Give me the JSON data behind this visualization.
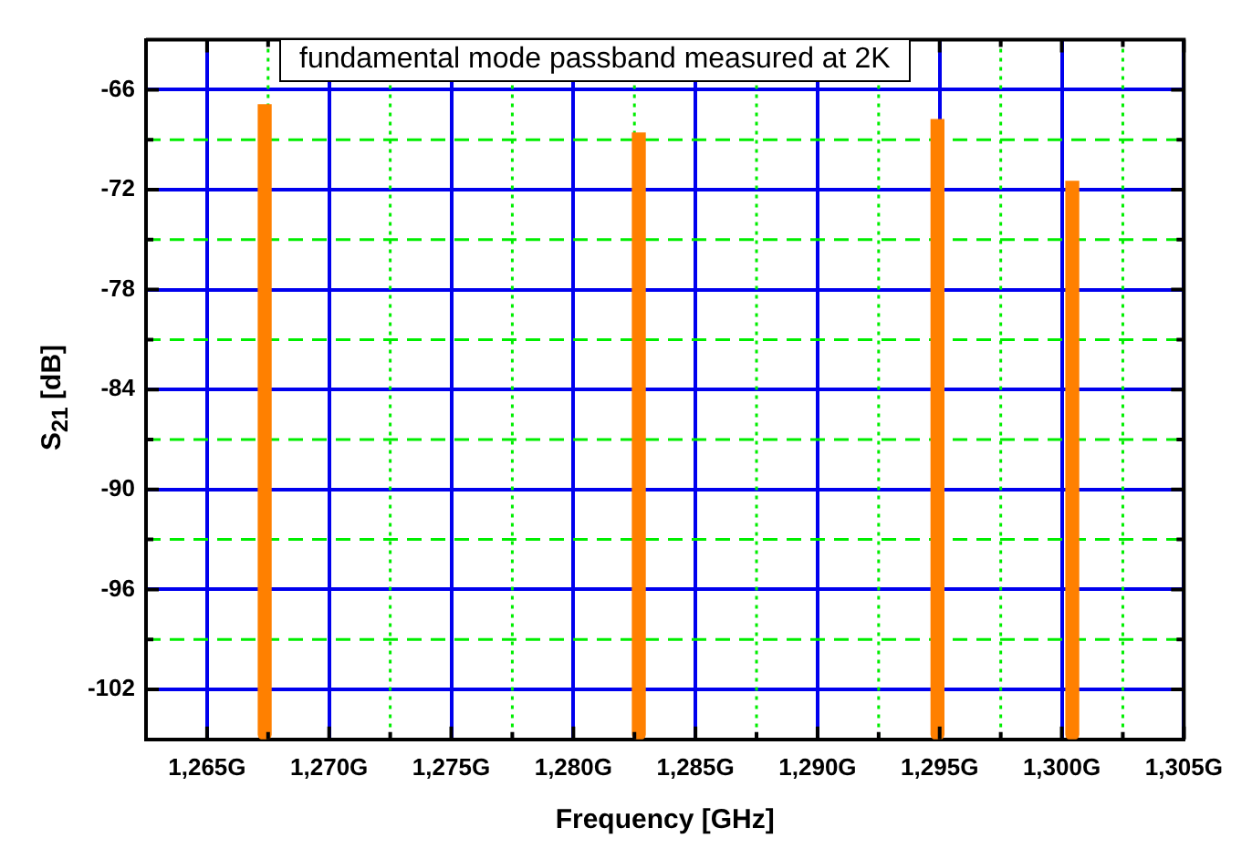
{
  "chart_data": {
    "type": "bar",
    "title": "fundamental mode passband measured at 2K",
    "xlabel": "Frequency [GHz]",
    "ylabel": "S$_{21}$ [dB]",
    "x": [
      1267.36,
      1282.68,
      1294.91,
      1300.43
    ],
    "base": [
      -105,
      -105,
      -105,
      -105
    ],
    "values": [
      38.1,
      36.4,
      37.2,
      33.5
    ],
    "color": "#ff8000",
    "xlim": [
      1262.5,
      1305
    ],
    "xticks": [
      {
        "value": 1265,
        "label": "1,265G"
      },
      {
        "value": 1267.5,
        "label": null
      },
      {
        "value": 1270,
        "label": "1,270G"
      },
      {
        "value": 1272.5,
        "label": null
      },
      {
        "value": 1275,
        "label": "1,275G"
      },
      {
        "value": 1277.5,
        "label": null
      },
      {
        "value": 1280,
        "label": "1,280G"
      },
      {
        "value": 1282.5,
        "label": null
      },
      {
        "value": 1285,
        "label": "1,285G"
      },
      {
        "value": 1287.5,
        "label": null
      },
      {
        "value": 1290,
        "label": "1,290G"
      },
      {
        "value": 1292.5,
        "label": null
      },
      {
        "value": 1295,
        "label": "1,295G"
      },
      {
        "value": 1297.5,
        "label": null
      },
      {
        "value": 1300,
        "label": "1,300G"
      },
      {
        "value": 1302.5,
        "label": null
      },
      {
        "value": 1305,
        "label": "1,305G"
      }
    ],
    "ylim": [
      -105,
      -63
    ],
    "yticks": [
      -102,
      {
        "value": -99,
        "label": null
      },
      -96,
      {
        "value": -93,
        "label": null
      },
      -90,
      {
        "value": -87,
        "label": null
      },
      -84,
      {
        "value": -81,
        "label": null
      },
      -78,
      {
        "value": -75,
        "label": null
      },
      -72,
      {
        "value": -69,
        "label": null
      },
      -66
    ],
    "grid": true,
    "legend": false
  }
}
